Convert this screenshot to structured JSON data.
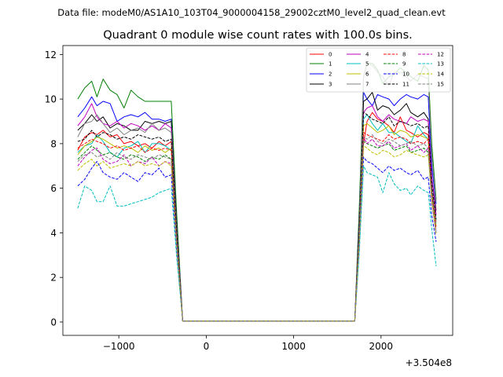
{
  "suptitle": "Data file: modeM0/AS1A10_103T04_9000004158_29002cztM0_level2_quad_clean.evt",
  "chart_data": {
    "type": "line",
    "title": "Quadrant 0 module wise count rates with 100.0s bins.",
    "xlabel": "",
    "ylabel": "",
    "x_offset_label": "+3.504e8",
    "xlim": [
      -1640,
      2820
    ],
    "ylim": [
      -0.6,
      12.4
    ],
    "xticks": [
      -1000,
      0,
      1000,
      2000
    ],
    "xtick_labels": [
      "−1000",
      "0",
      "1000",
      "2000"
    ],
    "yticks": [
      0,
      2,
      4,
      6,
      8,
      10,
      12
    ],
    "ytick_labels": [
      "0",
      "2",
      "4",
      "6",
      "8",
      "10",
      "12"
    ],
    "legend_position": "top-right",
    "legend_columns": 4,
    "x": [
      -1470,
      -1390,
      -1310,
      -1250,
      -1180,
      -1100,
      -1020,
      -940,
      -860,
      -780,
      -700,
      -620,
      -540,
      -470,
      -400,
      -340,
      -270,
      1630,
      1700,
      1750,
      1800,
      1840,
      1900,
      1960,
      2020,
      2090,
      2150,
      2220,
      2290,
      2340,
      2420,
      2490,
      2540,
      2580,
      2630
    ],
    "series": [
      {
        "name": "0",
        "color": "#ff0000",
        "dash": "solid",
        "values": [
          7.7,
          8.3,
          8.5,
          8.4,
          8.6,
          8.3,
          8.4,
          8.0,
          8.1,
          7.9,
          8.0,
          7.8,
          8.1,
          7.9,
          8.1,
          4.0,
          0.05,
          0.05,
          0.05,
          4.0,
          8.0,
          9.0,
          9.4,
          9.1,
          9.0,
          8.8,
          8.5,
          9.2,
          8.6,
          8.5,
          8.3,
          8.5,
          8.4,
          6.0,
          4.5
        ]
      },
      {
        "name": "1",
        "color": "#008000",
        "dash": "solid",
        "values": [
          10.0,
          10.5,
          10.8,
          10.1,
          10.9,
          10.4,
          10.2,
          9.6,
          10.4,
          10.1,
          9.9,
          9.9,
          9.9,
          9.9,
          9.9,
          5.0,
          0.05,
          0.05,
          0.05,
          5.0,
          11.0,
          11.6,
          11.6,
          11.3,
          10.7,
          11.0,
          11.1,
          11.4,
          11.2,
          11.0,
          10.8,
          11.5,
          11.3,
          8.0,
          5.5
        ]
      },
      {
        "name": "2",
        "color": "#0000ff",
        "dash": "solid",
        "values": [
          9.2,
          9.6,
          10.1,
          9.7,
          9.9,
          9.8,
          9.0,
          9.2,
          9.3,
          9.2,
          9.4,
          9.1,
          9.1,
          9.0,
          9.1,
          4.5,
          0.05,
          0.05,
          0.05,
          4.5,
          10.3,
          10.0,
          9.7,
          10.2,
          10.1,
          10.0,
          9.7,
          10.0,
          10.2,
          10.1,
          10.0,
          10.2,
          10.1,
          7.0,
          5.3
        ]
      },
      {
        "name": "3",
        "color": "#000000",
        "dash": "solid",
        "values": [
          8.6,
          8.9,
          9.3,
          9.0,
          9.2,
          8.7,
          8.9,
          8.8,
          8.6,
          8.6,
          9.0,
          8.9,
          9.0,
          8.9,
          9.0,
          4.5,
          0.05,
          0.05,
          0.05,
          4.5,
          9.9,
          10.0,
          10.3,
          9.5,
          9.7,
          9.6,
          9.3,
          9.5,
          9.8,
          9.4,
          9.2,
          9.4,
          9.1,
          6.5,
          5.0
        ]
      },
      {
        "name": "4",
        "color": "#bf00bf",
        "dash": "solid",
        "values": [
          8.8,
          9.2,
          9.8,
          9.2,
          8.9,
          8.8,
          9.0,
          8.7,
          8.9,
          8.8,
          8.6,
          8.8,
          8.6,
          8.9,
          8.7,
          4.3,
          0.05,
          0.05,
          0.05,
          4.3,
          9.4,
          9.6,
          9.7,
          9.2,
          9.0,
          9.3,
          9.1,
          9.0,
          8.9,
          9.2,
          9.0,
          9.1,
          9.0,
          6.5,
          4.8
        ]
      },
      {
        "name": "5",
        "color": "#00bfbf",
        "dash": "solid",
        "values": [
          7.6,
          7.9,
          8.0,
          8.4,
          8.1,
          7.6,
          7.4,
          7.8,
          7.9,
          8.1,
          7.6,
          8.0,
          8.0,
          7.9,
          7.7,
          4.0,
          0.05,
          0.05,
          0.05,
          4.0,
          9.1,
          9.3,
          8.9,
          8.6,
          8.9,
          8.5,
          8.5,
          8.3,
          8.1,
          8.0,
          8.8,
          8.4,
          8.2,
          6.0,
          4.4
        ]
      },
      {
        "name": "6",
        "color": "#bfbf00",
        "dash": "solid",
        "values": [
          7.5,
          7.9,
          8.1,
          8.3,
          8.2,
          8.0,
          7.8,
          7.9,
          7.8,
          7.6,
          7.9,
          7.7,
          7.8,
          7.6,
          7.8,
          3.9,
          0.05,
          0.05,
          0.05,
          3.9,
          8.8,
          8.9,
          8.7,
          8.5,
          8.6,
          8.8,
          8.4,
          8.6,
          8.5,
          8.3,
          8.4,
          8.3,
          8.2,
          5.8,
          4.3
        ]
      },
      {
        "name": "7",
        "color": "#808080",
        "dash": "solid",
        "values": [
          8.3,
          8.9,
          9.0,
          9.3,
          8.9,
          8.5,
          8.7,
          8.4,
          8.6,
          8.7,
          8.5,
          8.9,
          8.6,
          8.7,
          8.5,
          4.3,
          0.05,
          0.05,
          0.05,
          4.3,
          11.0,
          11.6,
          11.5,
          11.2,
          11.0,
          10.6,
          11.2,
          11.2,
          11.0,
          10.8,
          11.1,
          11.0,
          10.9,
          7.5,
          5.4
        ]
      },
      {
        "name": "8",
        "color": "#ff0000",
        "dash": "dashed",
        "values": [
          7.8,
          8.0,
          8.2,
          8.1,
          8.0,
          7.8,
          7.9,
          7.7,
          7.8,
          7.9,
          7.6,
          7.8,
          7.7,
          7.8,
          7.7,
          3.9,
          0.05,
          0.05,
          0.05,
          3.9,
          8.5,
          8.4,
          8.3,
          8.2,
          8.1,
          8.4,
          8.2,
          8.3,
          8.2,
          8.0,
          8.1,
          8.0,
          8.2,
          5.8,
          4.2
        ]
      },
      {
        "name": "9",
        "color": "#008000",
        "dash": "dashed",
        "values": [
          7.3,
          7.6,
          7.9,
          7.7,
          7.5,
          7.6,
          7.4,
          7.3,
          7.5,
          7.4,
          7.2,
          7.4,
          7.3,
          7.5,
          7.3,
          3.7,
          0.05,
          0.05,
          0.05,
          3.7,
          8.1,
          8.0,
          7.9,
          7.8,
          7.9,
          8.0,
          7.7,
          7.8,
          7.9,
          7.6,
          7.7,
          7.8,
          7.6,
          5.5,
          4.0
        ]
      },
      {
        "name": "10",
        "color": "#0000ff",
        "dash": "dashed",
        "values": [
          6.1,
          6.4,
          6.9,
          7.2,
          6.7,
          6.5,
          6.4,
          6.7,
          6.5,
          6.3,
          6.7,
          6.6,
          6.9,
          6.5,
          6.6,
          3.3,
          0.05,
          0.05,
          0.05,
          3.3,
          7.4,
          7.2,
          7.1,
          6.9,
          6.7,
          7.0,
          6.8,
          6.9,
          6.7,
          6.6,
          6.8,
          6.4,
          6.5,
          4.8,
          3.6
        ]
      },
      {
        "name": "11",
        "color": "#000000",
        "dash": "dashed",
        "values": [
          8.1,
          8.2,
          8.6,
          8.3,
          8.5,
          8.4,
          8.2,
          8.3,
          8.2,
          8.4,
          8.3,
          8.2,
          8.3,
          8.1,
          8.2,
          4.1,
          0.05,
          0.05,
          0.05,
          4.1,
          9.4,
          9.3,
          9.1,
          9.0,
          8.9,
          9.2,
          8.8,
          9.0,
          8.9,
          8.8,
          8.9,
          8.7,
          8.8,
          6.2,
          4.6
        ]
      },
      {
        "name": "12",
        "color": "#bf00bf",
        "dash": "dashed",
        "values": [
          7.0,
          7.4,
          7.7,
          7.8,
          7.3,
          7.1,
          7.2,
          7.5,
          7.0,
          7.2,
          7.1,
          7.4,
          7.0,
          7.2,
          7.1,
          3.6,
          0.05,
          0.05,
          0.05,
          3.6,
          8.3,
          8.0,
          8.2,
          7.9,
          7.9,
          8.1,
          7.8,
          7.9,
          8.0,
          7.7,
          7.9,
          7.6,
          7.8,
          5.6,
          4.0
        ]
      },
      {
        "name": "13",
        "color": "#00bfbf",
        "dash": "dashed",
        "values": [
          5.1,
          6.1,
          5.9,
          5.4,
          5.4,
          6.1,
          5.2,
          5.2,
          5.3,
          5.4,
          5.5,
          5.6,
          5.8,
          5.9,
          6.0,
          3.0,
          0.05,
          0.05,
          0.05,
          3.0,
          7.0,
          6.7,
          6.6,
          6.5,
          5.8,
          6.7,
          6.2,
          5.9,
          6.0,
          5.7,
          6.1,
          5.9,
          5.8,
          4.2,
          2.5
        ]
      },
      {
        "name": "14",
        "color": "#bfbf00",
        "dash": "dashed",
        "values": [
          6.8,
          7.1,
          7.3,
          7.0,
          7.2,
          6.9,
          7.0,
          7.1,
          7.0,
          7.2,
          7.0,
          7.1,
          7.0,
          7.2,
          7.0,
          3.5,
          0.05,
          0.05,
          0.05,
          3.5,
          7.9,
          7.8,
          7.6,
          7.5,
          7.7,
          7.6,
          7.4,
          7.5,
          7.7,
          7.6,
          7.5,
          7.4,
          7.5,
          5.4,
          3.9
        ]
      },
      {
        "name": "15",
        "color": "#808080",
        "dash": "dashed",
        "values": [
          7.2,
          7.5,
          7.6,
          7.4,
          7.5,
          7.3,
          7.6,
          7.4,
          7.3,
          7.5,
          7.4,
          7.3,
          7.5,
          7.4,
          7.3,
          3.7,
          0.05,
          0.05,
          0.05,
          3.7,
          8.3,
          8.2,
          8.4,
          8.1,
          8.0,
          8.2,
          8.1,
          7.9,
          8.0,
          8.1,
          7.9,
          8.0,
          7.8,
          5.6,
          4.0
        ]
      }
    ]
  }
}
